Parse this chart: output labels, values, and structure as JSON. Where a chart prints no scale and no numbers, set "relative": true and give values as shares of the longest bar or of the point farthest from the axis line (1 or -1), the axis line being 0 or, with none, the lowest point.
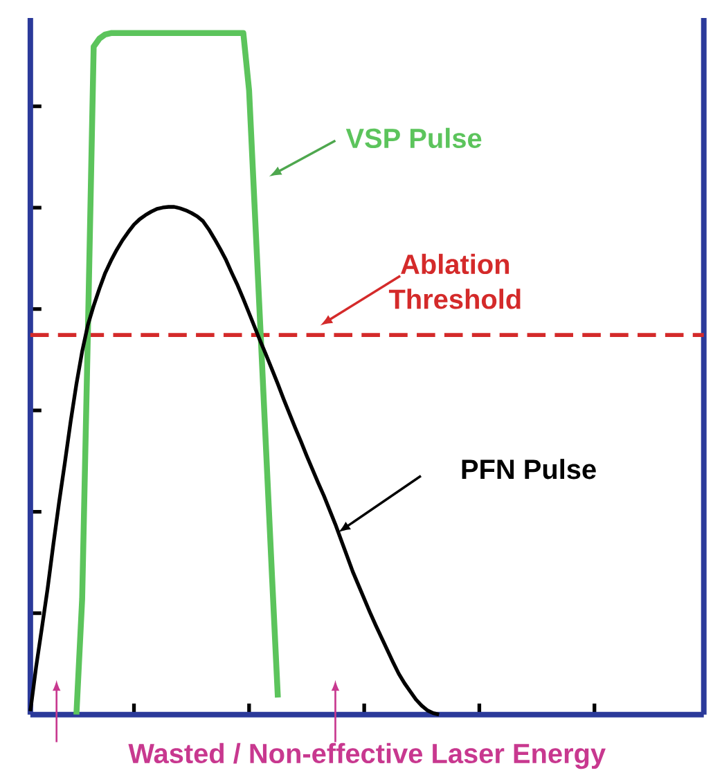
{
  "chart_data": {
    "type": "line",
    "relative": true,
    "categories": [
      null,
      null,
      null,
      null,
      null,
      null,
      null,
      null,
      null,
      null,
      null,
      null,
      null,
      null,
      null,
      null,
      null,
      null,
      null,
      null,
      null,
      null,
      null,
      null,
      null,
      null,
      null,
      null,
      null,
      null,
      null,
      null,
      null,
      null,
      null,
      null,
      null,
      null,
      null,
      null,
      null,
      null,
      null,
      null,
      null,
      null,
      null,
      null,
      null,
      null,
      null,
      null,
      null,
      null,
      null,
      null,
      null,
      null,
      null,
      null,
      null,
      null,
      null,
      null,
      null,
      null,
      null,
      null,
      null,
      null,
      null,
      null,
      null,
      null,
      null,
      null,
      null,
      null,
      null,
      null,
      null,
      null,
      null,
      null,
      null,
      null,
      null,
      null,
      null,
      null,
      null,
      null,
      null,
      null,
      null,
      null,
      null,
      null,
      null,
      null,
      null,
      null,
      null,
      null,
      null,
      null,
      null,
      null,
      null,
      null,
      null,
      null,
      null,
      null,
      null,
      null,
      null,
      null
    ],
    "series": [
      {
        "name": "VSP Pulse",
        "color": "#5cc45c",
        "values": [
          null,
          null,
          null,
          null,
          null,
          null,
          null,
          null,
          0,
          0.17,
          0.563,
          0.98,
          0.992,
          0.998,
          1,
          1,
          1,
          1,
          1,
          1,
          1,
          1,
          1,
          1,
          1,
          1,
          1,
          1,
          1,
          1,
          1,
          1,
          1,
          1,
          1,
          1,
          1,
          1,
          0.916,
          0.738,
          0.56,
          0.38,
          0.2,
          0.025,
          null,
          null,
          null,
          null,
          null,
          null,
          null,
          null,
          null,
          null,
          null,
          null,
          null,
          null,
          null,
          null,
          null,
          null,
          null,
          null,
          null,
          null,
          null,
          null,
          null,
          null,
          null,
          null,
          null,
          null,
          null,
          null,
          null,
          null,
          null,
          null,
          null,
          null,
          null,
          null,
          null,
          null,
          null,
          null,
          null,
          null,
          null,
          null,
          null,
          null,
          null,
          null,
          null,
          null,
          null,
          null,
          null,
          null,
          null,
          null,
          null,
          null,
          null,
          null,
          null,
          null,
          null,
          null,
          null,
          null,
          null,
          null,
          null,
          null
        ]
      },
      {
        "name": "PFN Pulse",
        "color": "#000000",
        "values": [
          0.005,
          0.07,
          0.127,
          0.185,
          0.25,
          0.312,
          0.37,
          0.43,
          0.485,
          0.533,
          0.572,
          0.6,
          0.625,
          0.648,
          0.666,
          0.682,
          0.696,
          0.708,
          0.719,
          0.727,
          0.733,
          0.738,
          0.742,
          0.744,
          0.745,
          0.745,
          0.743,
          0.74,
          0.736,
          0.731,
          0.724,
          0.712,
          0.698,
          0.683,
          0.667,
          0.648,
          0.63,
          0.61,
          0.589,
          0.568,
          0.547,
          0.527,
          0.506,
          0.485,
          0.463,
          0.442,
          0.421,
          0.401,
          0.38,
          0.36,
          0.34,
          0.321,
          0.3,
          0.279,
          0.256,
          0.233,
          0.21,
          0.19,
          0.17,
          0.15,
          0.131,
          0.113,
          0.095,
          0.077,
          0.06,
          0.046,
          0.034,
          0.022,
          0.013,
          0.006,
          0.002,
          0,
          null,
          null,
          null,
          null,
          null,
          null,
          null,
          null,
          null,
          null,
          null,
          null,
          null,
          null,
          null,
          null,
          null,
          null,
          null,
          null,
          null,
          null,
          null,
          null,
          null,
          null,
          null,
          null,
          null,
          null,
          null,
          null,
          null,
          null,
          null,
          null,
          null,
          null,
          null,
          null,
          null,
          null,
          null,
          null,
          null,
          null
        ]
      }
    ],
    "ref_lines": [
      {
        "axis": "y",
        "value": 0.557,
        "label": "Ablation Threshold",
        "color": "#d42a2a",
        "line_style": "dashed"
      }
    ],
    "annotations": [
      "Wasted / Non-effective Laser Energy"
    ],
    "marker": "none",
    "line_style": "solid",
    "grid": false
  }
}
